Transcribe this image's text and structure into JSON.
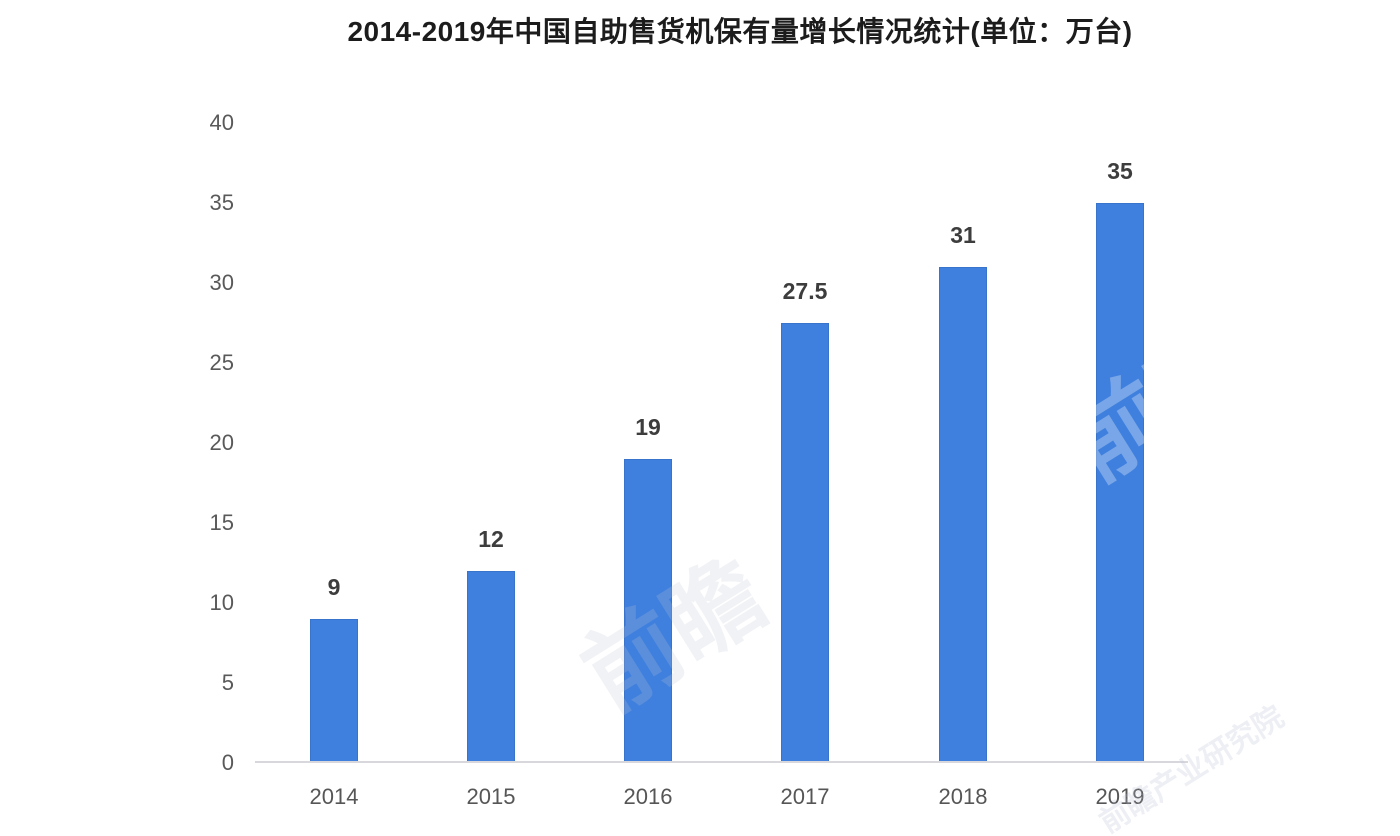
{
  "chart_data": {
    "type": "bar",
    "title": "2014-2019年中国自助售货机保有量增长情况统计(单位：万台)",
    "categories": [
      "2014",
      "2015",
      "2016",
      "2017",
      "2018",
      "2019"
    ],
    "values": [
      9,
      12,
      19,
      27.5,
      31,
      35
    ],
    "value_labels": [
      "9",
      "12",
      "19",
      "27.5",
      "31",
      "35"
    ],
    "xlabel": "",
    "ylabel": "",
    "ylim": [
      0,
      40
    ],
    "yticks": [
      0,
      5,
      10,
      15,
      20,
      25,
      30,
      35,
      40
    ],
    "grid": false,
    "legend": null,
    "colors": {
      "bar": "#3f80de",
      "axis_line": "#d8d8dc",
      "tick_label": "#595959",
      "value_label": "#3d3d3d",
      "title": "#1c1c1c",
      "background": "#ffffff"
    }
  },
  "watermark": {
    "text_large": "前瞻",
    "text_small": "前瞻产业研究院"
  }
}
